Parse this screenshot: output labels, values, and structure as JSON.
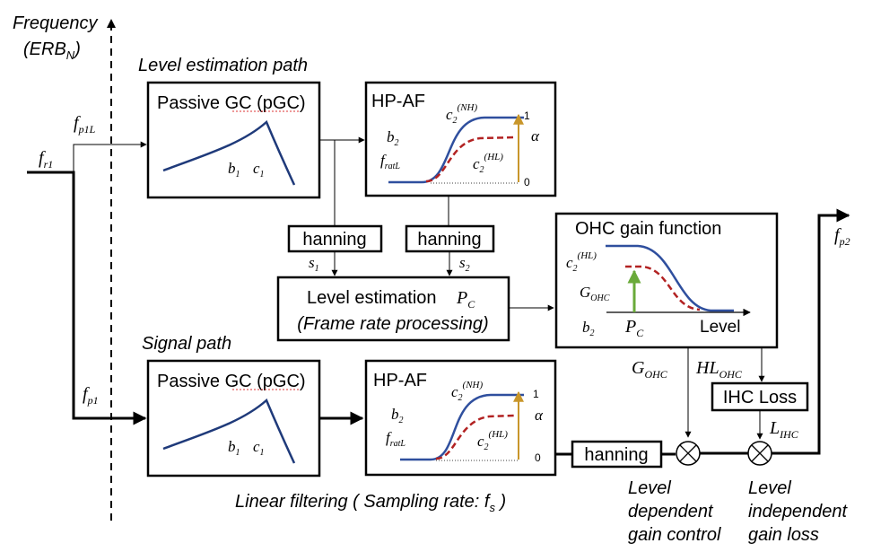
{
  "axis": {
    "frequency_line1": "Frequency",
    "frequency_line2": "(ERB",
    "frequency_sub": "N",
    "frequency_close": ")"
  },
  "paths": {
    "level_estimation": "Level estimation path",
    "signal": "Signal path",
    "linear_filtering": "Linear filtering ( Sampling rate: f",
    "linear_filtering_sub": "s",
    "linear_filtering_close": " )"
  },
  "inputs": {
    "fr1": "f",
    "fr1_sub": "r1",
    "fp1L": "f",
    "fp1L_sub": "p1L",
    "fp1": "f",
    "fp1_sub": "p1",
    "fp2": "f",
    "fp2_sub": "p2"
  },
  "pgc": {
    "title": "Passive GC (pGC)",
    "b1": "b",
    "b1_sub": "1",
    "c1": "c",
    "c1_sub": "1"
  },
  "hpaf": {
    "title": "HP-AF",
    "c2nh": "c",
    "c2nh_sub": "2",
    "c2nh_sup": "(NH)",
    "c2hl": "c",
    "c2hl_sub": "2",
    "c2hl_sup": "(HL)",
    "b2": "b",
    "b2_sub": "2",
    "fratL": "f",
    "fratL_sub": "ratL",
    "alpha": "α",
    "tick_top": "1",
    "tick_bottom": "0"
  },
  "hanning": {
    "label": "hanning"
  },
  "level_estimation": {
    "line1": "Level estimation",
    "pc": "P",
    "pc_sub": "C",
    "line2": "(Frame rate processing)",
    "s1": "s",
    "s1_sub": "1",
    "s2": "s",
    "s2_sub": "2"
  },
  "ohc": {
    "title": "OHC gain function",
    "c2hl": "c",
    "c2hl_sub": "2",
    "c2hl_sup": "(HL)",
    "gohc": "G",
    "gohc_sub": "OHC",
    "b2": "b",
    "b2_sub": "2",
    "pc": "P",
    "pc_sub": "C",
    "level": "Level"
  },
  "outputs": {
    "gohc": "G",
    "gohc_sub": "OHC",
    "hlohc": "HL",
    "hlohc_sub": "OHC",
    "ihc_loss": "IHC Loss",
    "lihc": "L",
    "lihc_sub": "IHC"
  },
  "captions": {
    "level_dependent_1": "Level",
    "level_dependent_2": "dependent",
    "level_dependent_3": "gain control",
    "level_independent_1": "Level",
    "level_independent_2": "independent",
    "level_independent_3": "gain loss"
  },
  "colors": {
    "nh_curve": "#2f4f9e",
    "hl_curve": "#b22222",
    "alpha_arrow": "#c8962a",
    "gohc_arrow": "#6aaa3a"
  }
}
